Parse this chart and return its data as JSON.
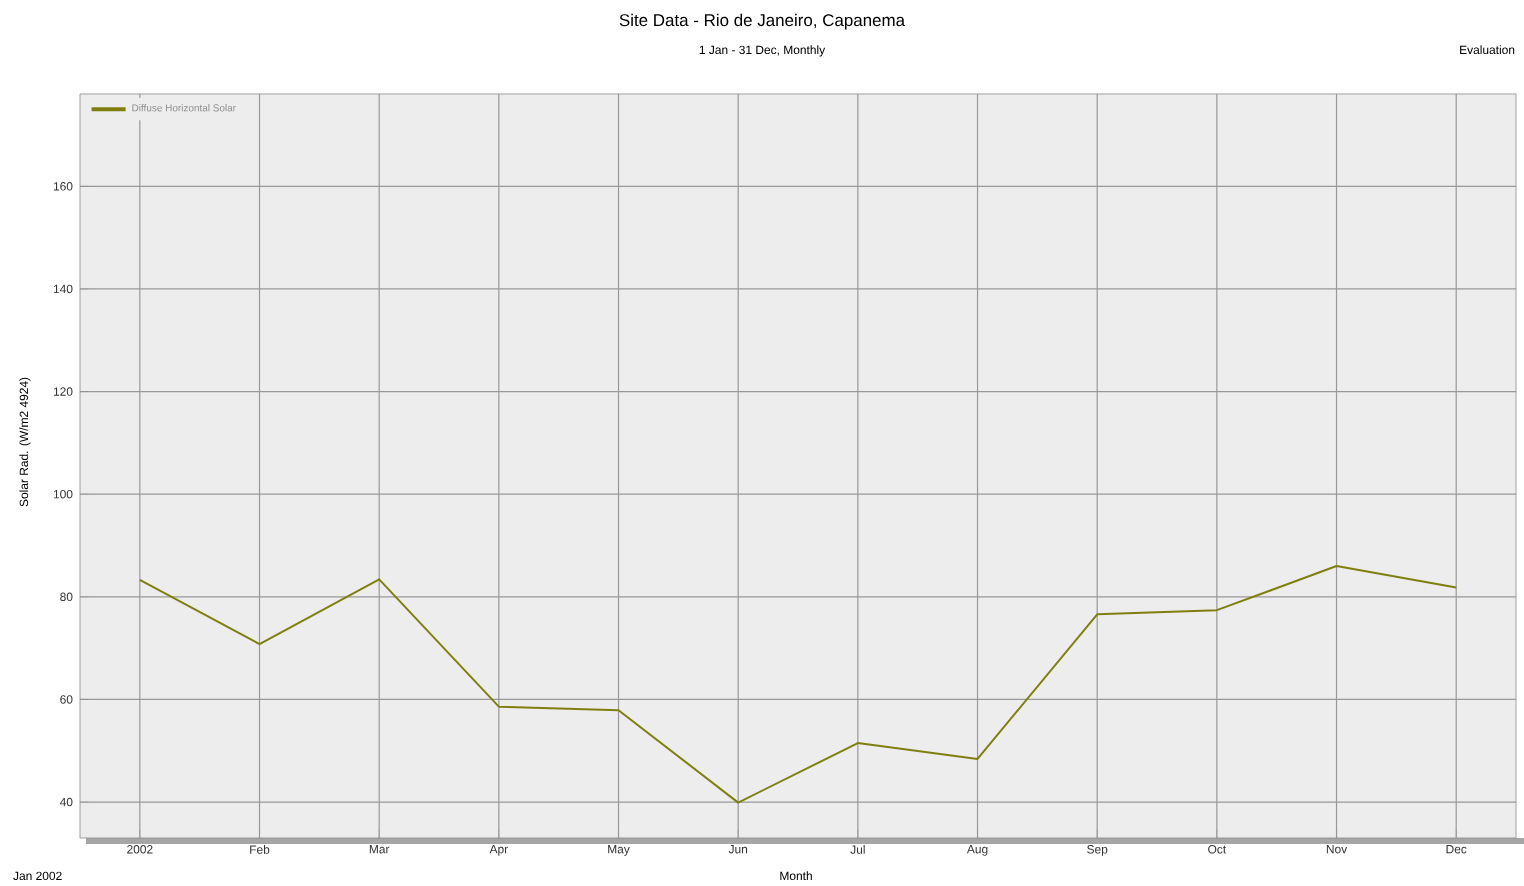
{
  "chart_data": {
    "type": "line",
    "title": "Site Data - Rio de Janeiro, Capanema",
    "subtitle": "1 Jan - 31 Dec, Monthly",
    "xlabel": "Month",
    "ylabel": "Solar Rad. (W/m2 4924)",
    "categories": [
      "2002",
      "Feb",
      "Mar",
      "Apr",
      "May",
      "Jun",
      "Jul",
      "Aug",
      "Sep",
      "Oct",
      "Nov",
      "Dec"
    ],
    "series": [
      {
        "name": "Diffuse Horizontal Solar",
        "color": "#7f7f10",
        "values": [
          83.3,
          70.8,
          83.4,
          58.6,
          57.9,
          39.9,
          51.5,
          48.4,
          76.6,
          77.4,
          86.0,
          81.8
        ]
      }
    ],
    "ylim": [
      33,
      178
    ],
    "yticks": [
      40,
      60,
      80,
      100,
      120,
      140,
      160
    ],
    "grid": true,
    "legend": "top left",
    "marker": "none",
    "line_style": "solid",
    "annotations": [
      "Evaluation",
      "Jan 2002"
    ]
  }
}
